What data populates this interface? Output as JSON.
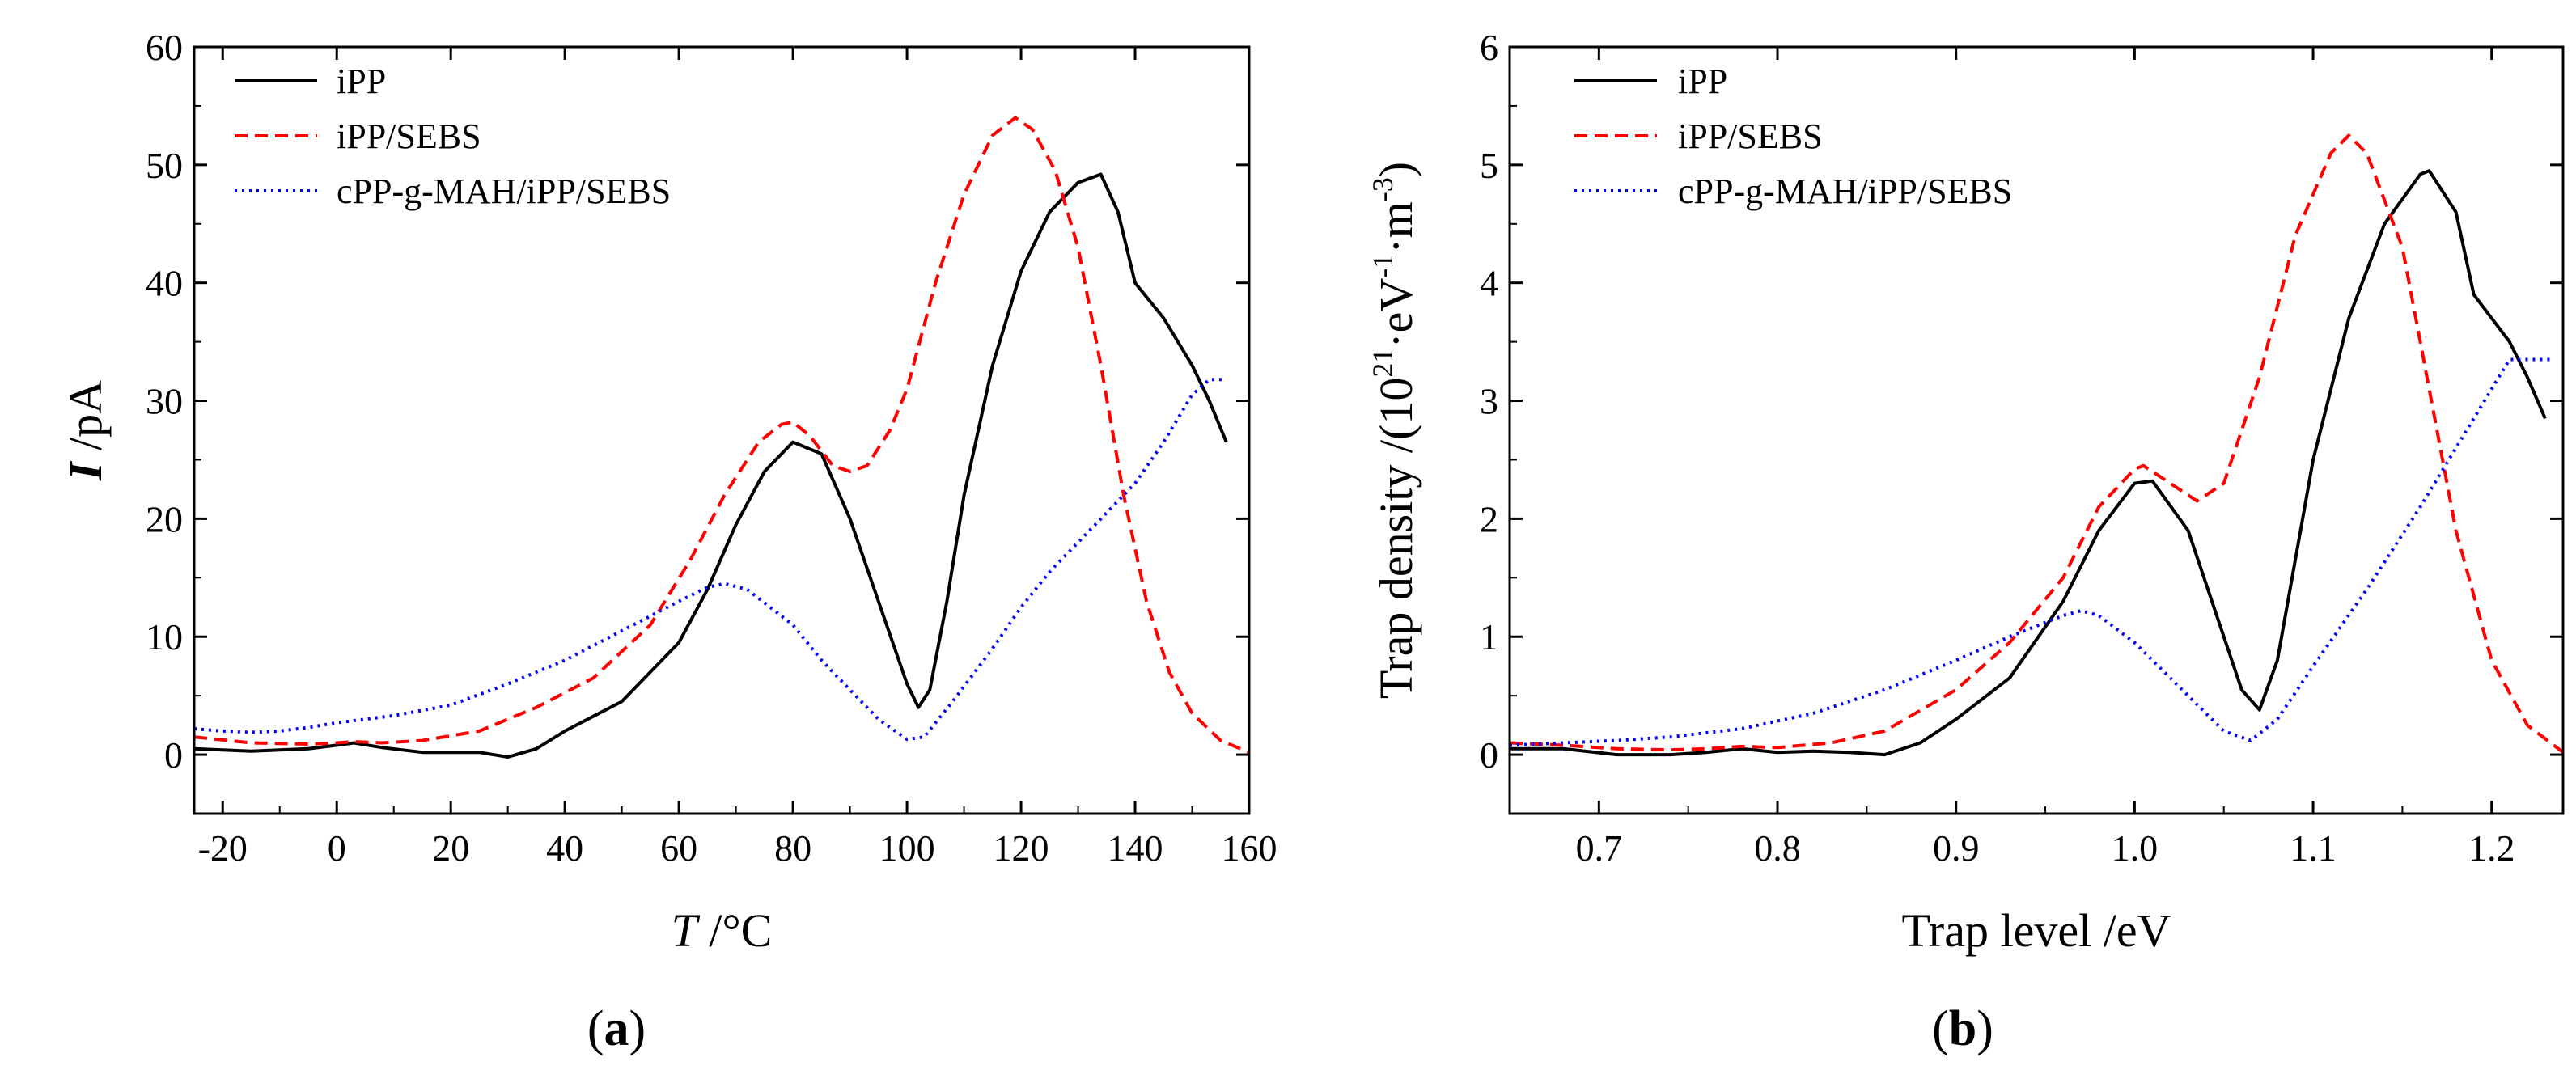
{
  "figure": {
    "panels": [
      {
        "label_open": "(",
        "label_letter": "a",
        "label_close": ")"
      },
      {
        "label_open": "(",
        "label_letter": "b",
        "label_close": ")"
      }
    ]
  },
  "chart_data": [
    {
      "type": "line",
      "panel": "a",
      "title": "",
      "ylabel_italic": "I",
      "ylabel_rest": " /pA",
      "xlabel_italic": "T",
      "xlabel_rest": " /°C",
      "xlim": [
        -25,
        160
      ],
      "ylim": [
        -5,
        60
      ],
      "xticks": [
        -20,
        0,
        20,
        40,
        60,
        80,
        100,
        120,
        140,
        160
      ],
      "yticks": [
        0,
        10,
        20,
        30,
        40,
        50,
        60
      ],
      "legend_position": "top-left",
      "series": [
        {
          "name": "iPP",
          "color": "#000000",
          "style": "solid",
          "x": [
            -25,
            -15,
            -5,
            0,
            3,
            8,
            15,
            25,
            30,
            35,
            40,
            50,
            60,
            65,
            70,
            75,
            80,
            85,
            90,
            95,
            100,
            102,
            104,
            107,
            110,
            115,
            120,
            125,
            130,
            134,
            137,
            140,
            145,
            150,
            153,
            156
          ],
          "y": [
            0.5,
            0.3,
            0.5,
            0.8,
            1.0,
            0.6,
            0.2,
            0.2,
            -0.2,
            0.5,
            2.0,
            4.5,
            9.5,
            14.0,
            19.5,
            24.0,
            26.5,
            25.5,
            20.0,
            13.0,
            6.0,
            4.0,
            5.5,
            13.0,
            22.0,
            33.0,
            41.0,
            46.0,
            48.5,
            49.2,
            46.0,
            40.0,
            37.0,
            33.0,
            30.0,
            26.5
          ]
        },
        {
          "name": "iPP/SEBS",
          "color": "#ff0000",
          "style": "dashed",
          "x": [
            -25,
            -15,
            -5,
            0,
            3,
            8,
            15,
            25,
            35,
            45,
            55,
            62,
            68,
            74,
            78,
            80,
            83,
            87,
            90,
            93,
            97,
            100,
            105,
            110,
            115,
            119,
            122,
            126,
            130,
            134,
            138,
            142,
            146,
            150,
            155,
            160
          ],
          "y": [
            1.5,
            1.0,
            0.9,
            1.0,
            1.1,
            1.0,
            1.2,
            2.0,
            4.0,
            6.5,
            11.0,
            16.5,
            22.0,
            26.5,
            28.0,
            28.2,
            27.0,
            24.5,
            24.0,
            24.5,
            27.5,
            31.0,
            40.0,
            47.5,
            52.5,
            54.0,
            53.0,
            49.5,
            43.0,
            33.0,
            22.0,
            13.0,
            7.0,
            3.5,
            1.2,
            0.2
          ]
        },
        {
          "name": "cPP-g-MAH/iPP/SEBS",
          "color": "#0000ff",
          "style": "dotted",
          "x": [
            -25,
            -20,
            -15,
            -10,
            -5,
            0,
            10,
            20,
            30,
            40,
            50,
            60,
            65,
            68,
            72,
            76,
            80,
            85,
            90,
            95,
            100,
            103,
            108,
            115,
            120,
            125,
            130,
            135,
            140,
            145,
            150,
            153,
            156
          ],
          "y": [
            2.2,
            2.0,
            1.9,
            2.0,
            2.3,
            2.7,
            3.3,
            4.2,
            6.0,
            8.0,
            10.5,
            13.0,
            14.2,
            14.5,
            14.0,
            12.5,
            11.0,
            8.0,
            5.5,
            3.0,
            1.3,
            1.5,
            4.5,
            9.0,
            12.5,
            15.5,
            18.0,
            20.5,
            23.0,
            26.5,
            30.5,
            31.8,
            31.8
          ]
        }
      ]
    },
    {
      "type": "line",
      "panel": "b",
      "title": "",
      "ylabel_main": "Trap density /(10",
      "ylabel_sup1": "21",
      "ylabel_mid": "·eV",
      "ylabel_sup2": "-1",
      "ylabel_mid2": "·m",
      "ylabel_sup3": "-3",
      "ylabel_end": ")",
      "xlabel": "Trap level /eV",
      "xlim": [
        0.65,
        1.24
      ],
      "ylim": [
        -0.5,
        6
      ],
      "xticks": [
        0.7,
        0.8,
        0.9,
        1.0,
        1.1,
        1.2
      ],
      "xtick_labels": [
        "0.7",
        "0.8",
        "0.9",
        "1.0",
        "1.1",
        "1.2"
      ],
      "yticks": [
        0,
        1,
        2,
        3,
        4,
        5,
        6
      ],
      "legend_position": "top-left",
      "series": [
        {
          "name": "iPP",
          "color": "#000000",
          "style": "solid",
          "x": [
            0.65,
            0.68,
            0.71,
            0.74,
            0.76,
            0.78,
            0.8,
            0.82,
            0.84,
            0.86,
            0.88,
            0.9,
            0.93,
            0.96,
            0.98,
            1.0,
            1.01,
            1.03,
            1.05,
            1.06,
            1.07,
            1.08,
            1.1,
            1.12,
            1.14,
            1.16,
            1.165,
            1.18,
            1.19,
            1.21,
            1.22,
            1.23
          ],
          "y": [
            0.05,
            0.05,
            0.0,
            0.0,
            0.02,
            0.05,
            0.02,
            0.03,
            0.02,
            0.0,
            0.1,
            0.3,
            0.65,
            1.3,
            1.9,
            2.3,
            2.32,
            1.9,
            1.0,
            0.55,
            0.38,
            0.8,
            2.5,
            3.7,
            4.5,
            4.92,
            4.95,
            4.6,
            3.9,
            3.5,
            3.2,
            2.85
          ]
        },
        {
          "name": "iPP/SEBS",
          "color": "#ff0000",
          "style": "dashed",
          "x": [
            0.65,
            0.68,
            0.71,
            0.74,
            0.76,
            0.78,
            0.8,
            0.83,
            0.86,
            0.9,
            0.93,
            0.96,
            0.98,
            1.0,
            1.005,
            1.02,
            1.035,
            1.05,
            1.07,
            1.09,
            1.11,
            1.12,
            1.13,
            1.15,
            1.16,
            1.18,
            1.2,
            1.22,
            1.24
          ],
          "y": [
            0.1,
            0.08,
            0.05,
            0.04,
            0.05,
            0.07,
            0.06,
            0.1,
            0.2,
            0.55,
            0.95,
            1.5,
            2.1,
            2.42,
            2.45,
            2.3,
            2.15,
            2.3,
            3.2,
            4.4,
            5.1,
            5.25,
            5.1,
            4.3,
            3.5,
            1.9,
            0.8,
            0.25,
            0.02
          ]
        },
        {
          "name": "cPP-g-MAH/iPP/SEBS",
          "color": "#0000ff",
          "style": "dotted",
          "x": [
            0.65,
            0.68,
            0.71,
            0.74,
            0.78,
            0.82,
            0.86,
            0.9,
            0.93,
            0.96,
            0.97,
            0.98,
            1.0,
            1.03,
            1.05,
            1.065,
            1.08,
            1.1,
            1.13,
            1.16,
            1.18,
            1.2,
            1.21,
            1.235
          ],
          "y": [
            0.08,
            0.1,
            0.12,
            0.15,
            0.22,
            0.35,
            0.55,
            0.8,
            1.0,
            1.18,
            1.22,
            1.18,
            0.95,
            0.5,
            0.2,
            0.12,
            0.3,
            0.75,
            1.4,
            2.1,
            2.6,
            3.1,
            3.35,
            3.35
          ]
        }
      ]
    }
  ]
}
